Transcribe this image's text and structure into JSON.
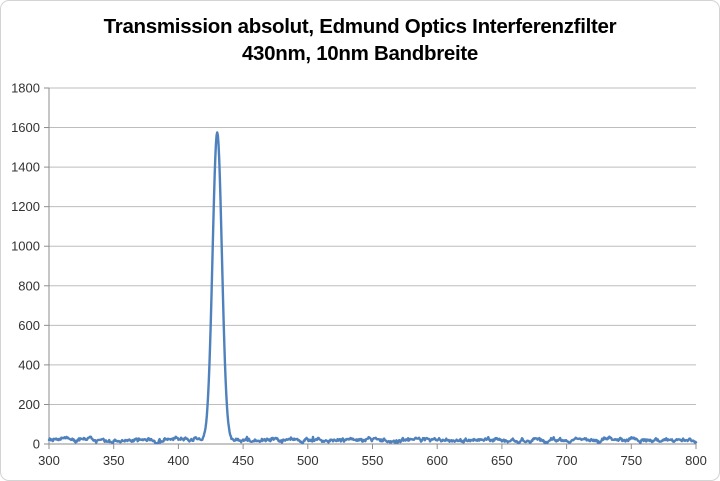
{
  "chart": {
    "title_line1": "Transmission absolut, Edmund Optics Interferenzfilter",
    "title_line2": "430nm, 10nm Bandbreite"
  },
  "colors": {
    "series_line": "#4F81BD",
    "gridline": "#BDBDBD",
    "axis_line": "#8E8E8E",
    "tick_label": "#333333",
    "title": "#000000",
    "background": "#FFFFFF",
    "border": "#D4D4D4"
  },
  "chart_data": {
    "type": "line",
    "title": "Transmission absolut, Edmund Optics Interferenzfilter 430nm, 10nm Bandbreite",
    "xlabel": "",
    "ylabel": "",
    "xlim": [
      300,
      800
    ],
    "ylim": [
      0,
      1800
    ],
    "x_ticks": [
      300,
      350,
      400,
      450,
      500,
      550,
      600,
      650,
      700,
      750,
      800
    ],
    "y_ticks": [
      0,
      200,
      400,
      600,
      800,
      1000,
      1200,
      1400,
      1600,
      1800
    ],
    "grid": "horizontal-only",
    "legend": "none",
    "series": [
      {
        "name": "Transmission absolut",
        "color": "#4F81BD",
        "model": {
          "description": "flat noisy baseline across 300-800nm with a single narrow transmission peak",
          "baseline": 20,
          "noise_amplitude": 9,
          "peak_center_nm": 430,
          "peak_height": 1575,
          "peak_fwhm_nm": 8.5,
          "sample_step_nm": 0.5
        },
        "key_points": [
          [
            300,
            20
          ],
          [
            350,
            22
          ],
          [
            400,
            20
          ],
          [
            420,
            25
          ],
          [
            423,
            200
          ],
          [
            425,
            640
          ],
          [
            427,
            1230
          ],
          [
            430,
            1575
          ],
          [
            433,
            1000
          ],
          [
            435,
            330
          ],
          [
            438,
            60
          ],
          [
            442,
            20
          ],
          [
            500,
            20
          ],
          [
            550,
            28
          ],
          [
            600,
            20
          ],
          [
            650,
            22
          ],
          [
            700,
            20
          ],
          [
            750,
            22
          ],
          [
            800,
            22
          ]
        ]
      }
    ]
  }
}
